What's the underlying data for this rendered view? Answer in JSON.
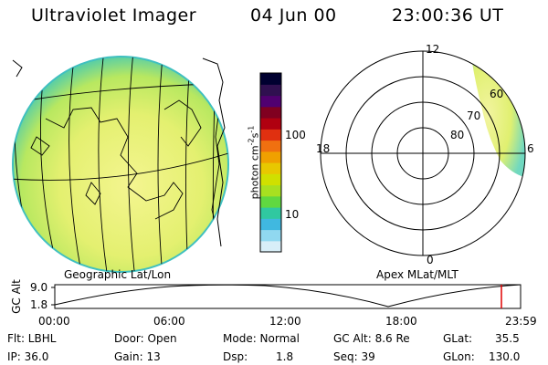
{
  "header": {
    "title": "Ultraviolet Imager",
    "date": "04 Jun 00",
    "time": "23:00:36 UT"
  },
  "left_panel": {
    "caption": "Geographic Lat/Lon"
  },
  "right_panel": {
    "caption": "Apex MLat/MLT",
    "mlt_labels": {
      "top": "12",
      "bottom": "0",
      "left": "18",
      "right": "6"
    },
    "lat_labels": [
      "60",
      "70",
      "80"
    ]
  },
  "colorbar": {
    "unit_main": "photon cm",
    "unit_exp1": "-2",
    "unit_s": "s",
    "unit_exp2": "-1",
    "tick_high": "100",
    "tick_low": "10",
    "colors": [
      "#000030",
      "#301050",
      "#500070",
      "#800020",
      "#b00010",
      "#e03010",
      "#f07010",
      "#f0a000",
      "#e8c800",
      "#d0e000",
      "#a8e020",
      "#60d840",
      "#30c8a0",
      "#40b8e0",
      "#90d8f0",
      "#d8eef8"
    ]
  },
  "altitude_plot": {
    "ylabel": "GC Alt",
    "ymax_label": "9.0",
    "ymin_label": "1.8",
    "x_ticks": [
      "00:00",
      "06:00",
      "12:00",
      "18:00",
      "23:59"
    ],
    "marker_color": "#e00000"
  },
  "info": {
    "row1": {
      "filter": "Flt: LBHL",
      "door": "Door: Open",
      "mode": "Mode: Normal",
      "gcalt": "GC Alt: 8.6 Re",
      "glat_key": "GLat:",
      "glat_val": "35.5"
    },
    "row2": {
      "ip": "IP: 36.0",
      "gain": "Gain: 13",
      "dsp_key": "Dsp:",
      "dsp_val": "1.8",
      "seq": "Seq: 39",
      "glon_key": "GLon:",
      "glon_val": "130.0"
    }
  }
}
